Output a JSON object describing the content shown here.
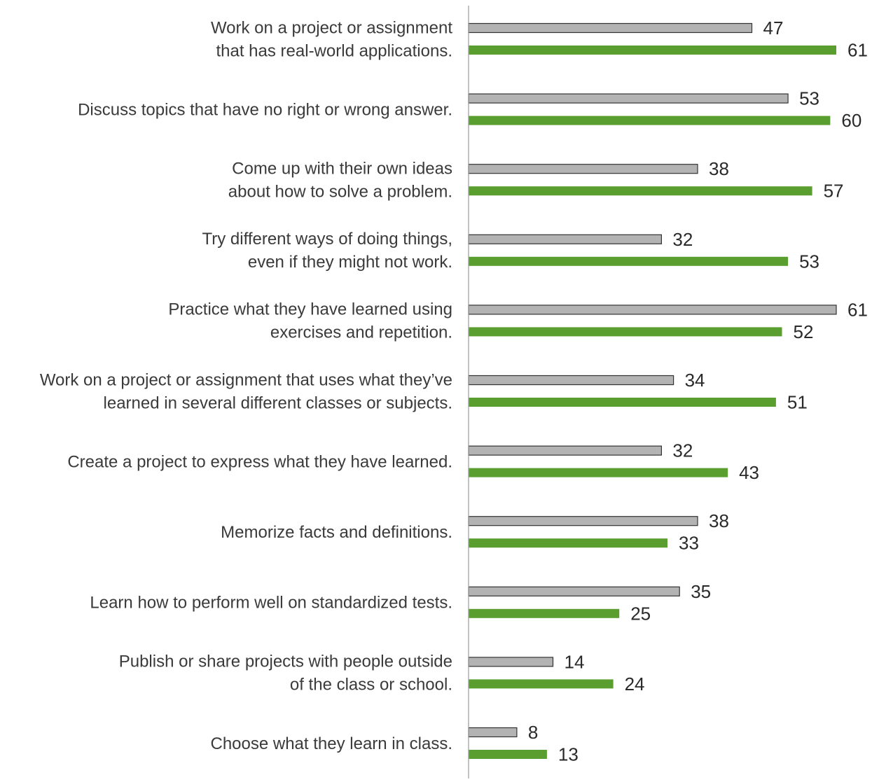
{
  "chart_data": {
    "type": "bar",
    "orientation": "horizontal",
    "categories": [
      [
        "Work on a project or assignment",
        "that has real-world applications."
      ],
      [
        "Discuss topics that have no right or wrong answer."
      ],
      [
        "Come up with their own ideas",
        "about how to solve a problem."
      ],
      [
        "Try different ways of doing things,",
        "even if they might not work."
      ],
      [
        "Practice what they have learned using",
        "exercises and repetition."
      ],
      [
        "Work on a project or assignment that uses what they’ve",
        "learned in several different classes or subjects."
      ],
      [
        "Create a project to express what they have learned."
      ],
      [
        "Memorize facts and definitions."
      ],
      [
        "Learn how to perform well on standardized tests."
      ],
      [
        "Publish or share projects with people outside",
        "of the class or school."
      ],
      [
        "Choose what they learn in class."
      ]
    ],
    "series": [
      {
        "color": "#b3b3b3",
        "stroke": "#333333",
        "values": [
          47,
          53,
          38,
          32,
          61,
          34,
          32,
          38,
          35,
          14,
          8
        ]
      },
      {
        "color": "#5a9e2f",
        "stroke": "#5a9e2f",
        "values": [
          61,
          60,
          57,
          53,
          52,
          51,
          43,
          33,
          25,
          24,
          13
        ]
      }
    ],
    "xlim": [
      0,
      61
    ],
    "grid": false,
    "legend": "none",
    "title": "",
    "xlabel": "",
    "ylabel": ""
  }
}
